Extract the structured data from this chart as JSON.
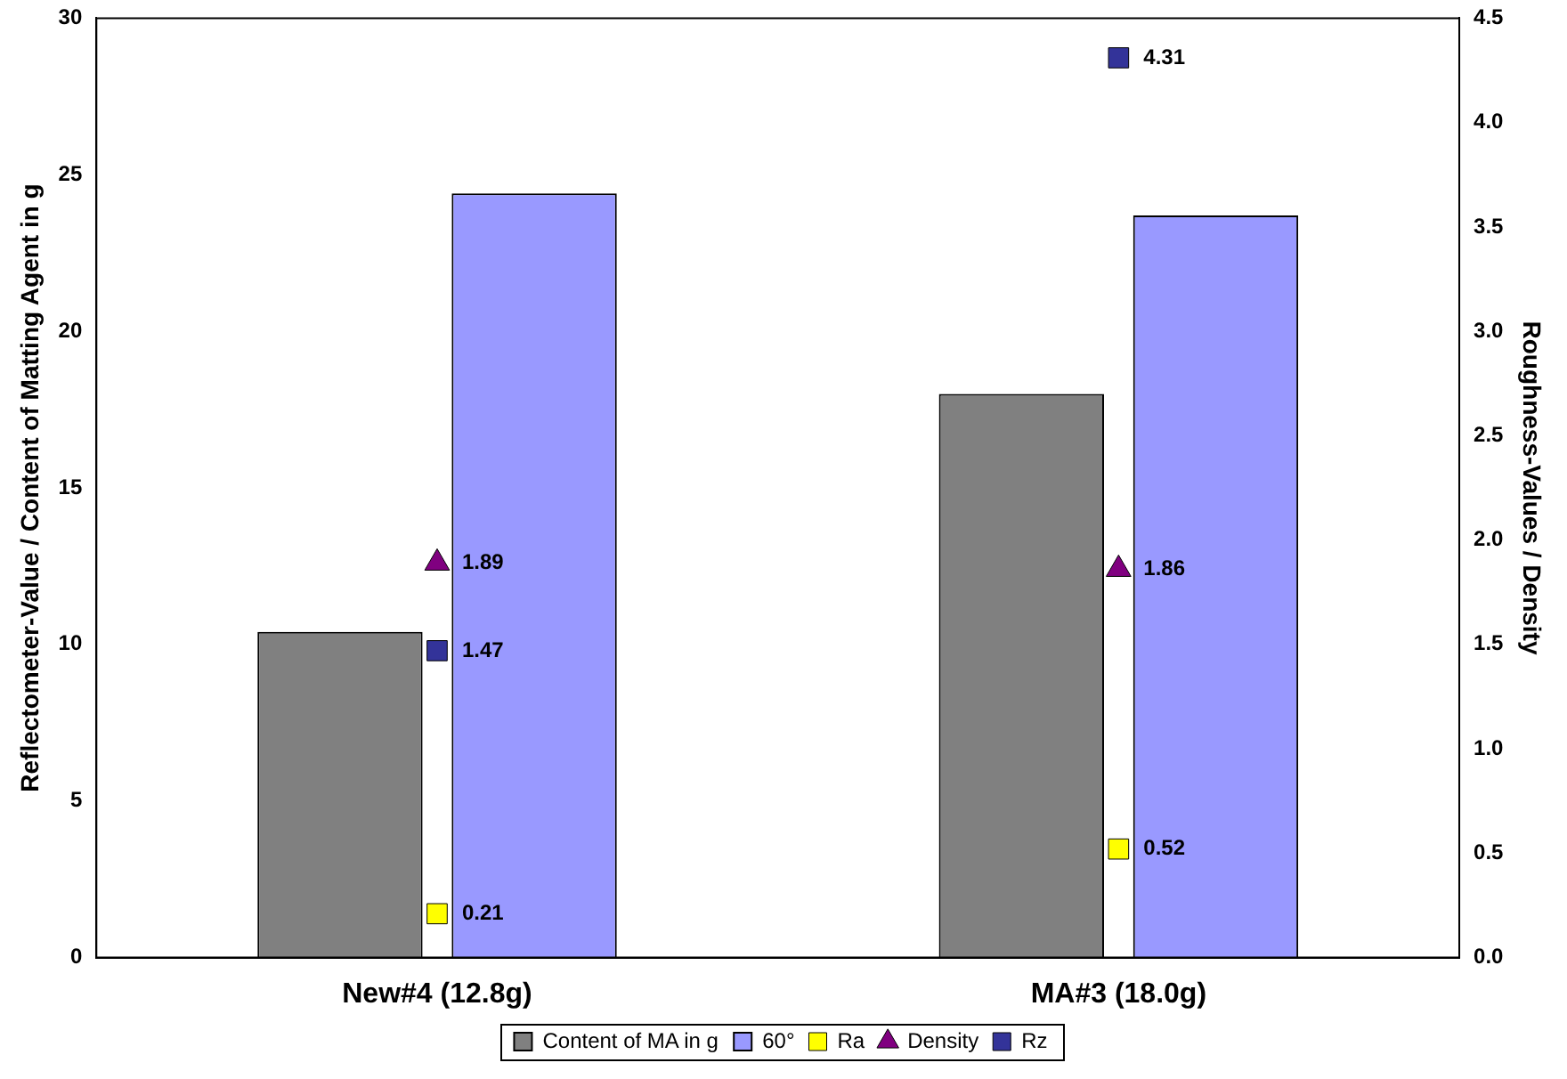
{
  "chart_data": {
    "type": "bar",
    "categories": [
      "New#4 (12.8g)",
      "MA#3 (18.0g)"
    ],
    "ylabel": "Reflectometer-Value / Content of Matting Agent in g",
    "y2label": "Roughness-Values / Density",
    "series": [
      {
        "name": "Content of MA in g",
        "color": "#808080",
        "values": [
          10.4,
          18.0
        ]
      },
      {
        "name": "60°",
        "color": "#9999ff",
        "values": [
          24.4,
          23.7
        ]
      },
      {
        "name": "Ra",
        "type": "scatter",
        "axis": "y2",
        "marker": "square",
        "color": "#ffff00",
        "x": [
          "New#4 (12.8g)",
          "MA#3 (18.0g)"
        ],
        "values": [
          0.21,
          0.52
        ],
        "value_labels": [
          "0.21",
          "0.52"
        ]
      },
      {
        "name": "Density",
        "type": "scatter",
        "axis": "y2",
        "marker": "triangle",
        "color": "#800080",
        "x": [
          "New#4 (12.8g)",
          "MA#3 (18.0g)"
        ],
        "values": [
          1.89,
          1.86
        ],
        "value_labels": [
          "1.89",
          "1.86"
        ]
      },
      {
        "name": "Rz",
        "type": "scatter",
        "axis": "y2",
        "marker": "square",
        "color": "#333399",
        "x": [
          "New#4 (12.8g)",
          "MA#3 (18.0g)"
        ],
        "values": [
          1.47,
          4.31
        ],
        "value_labels": [
          "1.47",
          "4.31"
        ]
      }
    ],
    "ylim": [
      0,
      30
    ],
    "yticks": [
      0,
      5,
      10,
      15,
      20,
      25,
      30
    ],
    "y2lim": [
      0,
      4.5
    ],
    "y2ticks": [
      {
        "value": 0,
        "label": "0.0"
      },
      {
        "value": 0.5,
        "label": "0.5"
      },
      {
        "value": 1,
        "label": "1.0"
      },
      {
        "value": 1.5,
        "label": "1.5"
      },
      {
        "value": 2,
        "label": "2.0"
      },
      {
        "value": 2.5,
        "label": "2.5"
      },
      {
        "value": 3,
        "label": "3.0"
      },
      {
        "value": 3.5,
        "label": "3.5"
      },
      {
        "value": 4,
        "label": "4.0"
      },
      {
        "value": 4.5,
        "label": "4.5"
      }
    ],
    "grid": false,
    "legend": "bottom"
  }
}
